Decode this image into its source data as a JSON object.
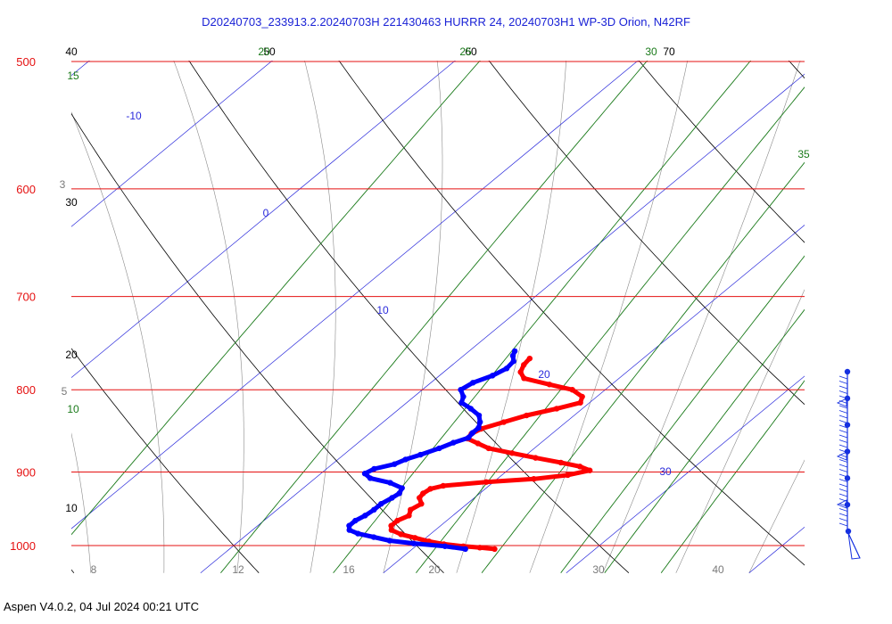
{
  "title": "D20240703_233913.2.20240703H 221430463 HURRR 24, 20240703H1 WP-3D Orion, N42RF",
  "footer": "Aspen V4.0.2, 04 Jul 2024  00:21 UTC",
  "colors": {
    "isobar": "#e51010",
    "temperature": "#ff0000",
    "dewpoint": "#0000ff",
    "isotherm": "#2a2adb",
    "mixing_ratio": "#1a7a1a",
    "dry_adiabat": "#000000",
    "moist_adiabat": "#8a8a8a",
    "wind": "#1530e0"
  },
  "chart_data": {
    "type": "line",
    "subtype": "skew-T log-p diagram",
    "y_scale": "log (pressure, hPa)",
    "ylim": [
      1020,
      500
    ],
    "grid": true,
    "isobar_labels": [
      "500",
      "600",
      "700",
      "800",
      "900",
      "1000"
    ],
    "isotherm_labels": [
      {
        "text": "-10",
        "value": -10
      },
      {
        "text": "0",
        "value": 0
      },
      {
        "text": "10",
        "value": 10
      },
      {
        "text": "20",
        "value": 20
      },
      {
        "text": "30",
        "value": 30
      }
    ],
    "dry_adiabat_labels": [
      "40",
      "50",
      "60",
      "70",
      "30",
      "20",
      "10"
    ],
    "mixing_ratio_labels": [
      "15",
      "20",
      "25",
      "30",
      "35",
      "10"
    ],
    "bottom_labels": [
      "8",
      "12",
      "16",
      "20",
      "30",
      "40"
    ],
    "side_labels": [
      "3",
      "5"
    ],
    "series": [
      {
        "kind": "temperature",
        "points": [
          [
            1005,
            24.5
          ],
          [
            1003,
            23.6
          ],
          [
            1001,
            22.6
          ],
          [
            998,
            21.4
          ],
          [
            994,
            20.4
          ],
          [
            989,
            19.4
          ],
          [
            984,
            18.4
          ],
          [
            978,
            17.6
          ],
          [
            972,
            17.3
          ],
          [
            965,
            17.3
          ],
          [
            958,
            17.6
          ],
          [
            950,
            17.3
          ],
          [
            942,
            17.5
          ],
          [
            934,
            17.0
          ],
          [
            928,
            16.9
          ],
          [
            922,
            17.0
          ],
          [
            918,
            17.5
          ],
          [
            913,
            19.6
          ],
          [
            909,
            22.0
          ],
          [
            904,
            23.6
          ],
          [
            898,
            24.5
          ],
          [
            893,
            23.7
          ],
          [
            888,
            22.4
          ],
          [
            882,
            20.7
          ],
          [
            876,
            19.1
          ],
          [
            870,
            17.5
          ],
          [
            864,
            16.6
          ],
          [
            858,
            15.7
          ],
          [
            852,
            15.6
          ],
          [
            846,
            15.8
          ],
          [
            838,
            16.6
          ],
          [
            830,
            17.4
          ],
          [
            822,
            18.6
          ],
          [
            815,
            19.5
          ],
          [
            808,
            19.2
          ],
          [
            800,
            18.2
          ],
          [
            794,
            16.6
          ],
          [
            787,
            14.8
          ],
          [
            780,
            14.2
          ],
          [
            772,
            13.9
          ],
          [
            765,
            13.8
          ]
        ]
      },
      {
        "kind": "dewpoint",
        "points": [
          [
            1005,
            22.9
          ],
          [
            1001,
            21.6
          ],
          [
            997,
            19.7
          ],
          [
            993,
            18.2
          ],
          [
            988,
            17.1
          ],
          [
            983,
            16.0
          ],
          [
            978,
            15.3
          ],
          [
            972,
            15.0
          ],
          [
            965,
            15.0
          ],
          [
            958,
            15.2
          ],
          [
            950,
            15.3
          ],
          [
            942,
            15.3
          ],
          [
            934,
            15.5
          ],
          [
            928,
            15.6
          ],
          [
            921,
            15.4
          ],
          [
            914,
            14.4
          ],
          [
            908,
            13.0
          ],
          [
            902,
            12.4
          ],
          [
            896,
            12.6
          ],
          [
            890,
            13.4
          ],
          [
            884,
            13.7
          ],
          [
            878,
            14.2
          ],
          [
            870,
            14.8
          ],
          [
            863,
            15.2
          ],
          [
            857,
            15.7
          ],
          [
            851,
            15.6
          ],
          [
            845,
            15.6
          ],
          [
            838,
            15.3
          ],
          [
            830,
            14.8
          ],
          [
            822,
            13.9
          ],
          [
            815,
            13.0
          ],
          [
            808,
            12.7
          ],
          [
            800,
            12.1
          ],
          [
            792,
            12.3
          ],
          [
            784,
            12.9
          ],
          [
            776,
            13.2
          ],
          [
            768,
            13.1
          ],
          [
            762,
            12.7
          ],
          [
            757,
            12.5
          ]
        ]
      }
    ],
    "wind_profile": {
      "levels": 7,
      "marker_color": "#1530e0"
    }
  }
}
